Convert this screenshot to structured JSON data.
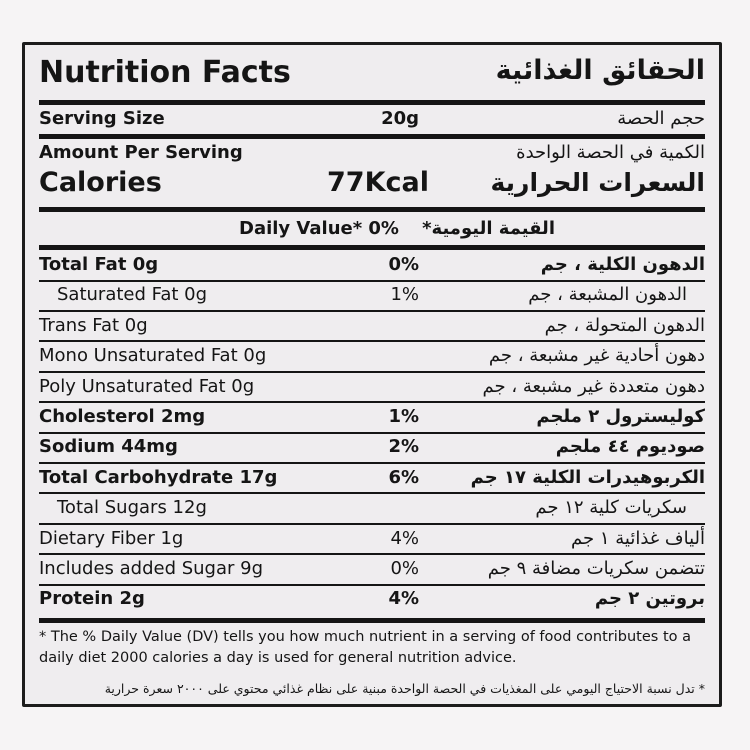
{
  "title_en": "Nutrition Facts",
  "title_ar": "الحقائق الغذائية",
  "serving": {
    "label_en": "Serving Size",
    "value": "20g",
    "label_ar": "حجم الحصة"
  },
  "amount": {
    "label_en": "Amount Per Serving",
    "label_ar": "الكمية في الحصة الواحدة"
  },
  "calories": {
    "label_en": "Calories",
    "value": "77Kcal",
    "label_ar": "السعرات الحرارية"
  },
  "dv_header": {
    "label_en": "Daily Value* 0%",
    "label_ar": "القيمة اليومية*"
  },
  "rows": [
    {
      "en": "Total Fat 0g",
      "dv": "0%",
      "ar": "الدهون الكلية ، جم"
    },
    {
      "en": "Saturated Fat 0g",
      "dv": "1%",
      "ar": "الدهون المشبعة ، جم"
    },
    {
      "en": "Trans Fat 0g",
      "dv": "",
      "ar": "الدهون المتحولة ، جم"
    },
    {
      "en": "Mono Unsaturated Fat 0g",
      "dv": "",
      "ar": "دهون أحادية غير مشبعة ، جم"
    },
    {
      "en": "Poly Unsaturated Fat 0g",
      "dv": "",
      "ar": "دهون متعددة غير مشبعة ، جم"
    },
    {
      "en": "Cholesterol 2mg",
      "dv": "1%",
      "ar": "كوليسترول ٢ ملجم"
    },
    {
      "en": "Sodium 44mg",
      "dv": "2%",
      "ar": "صوديوم ٤٤ ملجم"
    },
    {
      "en": "Total Carbohydrate 17g",
      "dv": "6%",
      "ar": "الكربوهيدرات الكلية ١٧ جم"
    },
    {
      "en": "Total Sugars 12g",
      "dv": "",
      "ar": "سكريات كلية ١٢ جم"
    },
    {
      "en": "Dietary Fiber 1g",
      "dv": "4%",
      "ar": "ألياف غذائية ١ جم"
    },
    {
      "en": "Includes added Sugar 9g",
      "dv": "0%",
      "ar": "تتضمن سكريات مضافة ٩ جم"
    },
    {
      "en": "Protein 2g",
      "dv": "4%",
      "ar": "بروتين ٢ جم"
    }
  ],
  "footnote_en": "* The % Daily Value (DV) tells you how much nutrient in a serving of food contributes to a daily diet 2000 calories a day is used for general nutrition advice.",
  "footnote_ar": "* تدل نسبة الاحتياج اليومي على المغذيات في الحصة الواحدة مبنية على نظام غذائي محتوي على ٢٠٠٠ سعرة حرارية"
}
